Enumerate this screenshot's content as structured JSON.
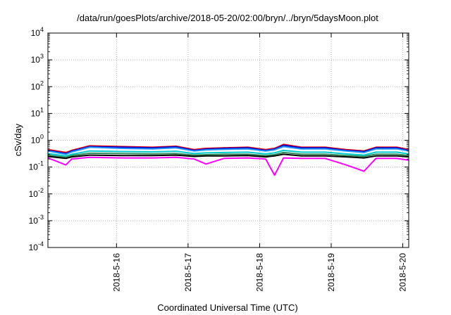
{
  "chart_data": {
    "type": "line",
    "title": "/data/run/goesPlots/archive/2018-05-20/02:00/bryn/../bryn/5daysMoon.plot",
    "xlabel": "Coordinated Universal Time (UTC)",
    "ylabel": "cSv/day",
    "yscale": "log",
    "ylim": [
      0.0001,
      10000
    ],
    "xlim": [
      "2018-05-15T01:00",
      "2018-05-20T02:00"
    ],
    "grid": true,
    "legend": "none",
    "x_ticks": [
      "2018-5-16",
      "2018-5-17",
      "2018-5-18",
      "2018-5-19",
      "2018-5-20"
    ],
    "y_ticks": [
      {
        "base": "10",
        "exp": "-4",
        "value": 0.0001
      },
      {
        "base": "10",
        "exp": "-3",
        "value": 0.001
      },
      {
        "base": "10",
        "exp": "-2",
        "value": 0.01
      },
      {
        "base": "10",
        "exp": "-1",
        "value": 0.1
      },
      {
        "base": "10",
        "exp": "0",
        "value": 1
      },
      {
        "base": "10",
        "exp": "1",
        "value": 10
      },
      {
        "base": "10",
        "exp": "2",
        "value": 100
      },
      {
        "base": "10",
        "exp": "3",
        "value": 1000
      },
      {
        "base": "10",
        "exp": "4",
        "value": 10000
      }
    ],
    "x": [
      "2018-05-15T01:00",
      "2018-05-15T07:00",
      "2018-05-15T09:00",
      "2018-05-15T15:00",
      "2018-05-16T02:00",
      "2018-05-16T12:00",
      "2018-05-16T20:00",
      "2018-05-17T02:00",
      "2018-05-17T06:00",
      "2018-05-17T12:00",
      "2018-05-17T20:00",
      "2018-05-18T02:00",
      "2018-05-18T05:00",
      "2018-05-18T08:00",
      "2018-05-18T14:00",
      "2018-05-18T22:00",
      "2018-05-19T05:00",
      "2018-05-19T11:00",
      "2018-05-19T15:00",
      "2018-05-19T22:00",
      "2018-05-20T02:00"
    ],
    "series": [
      {
        "color": "#ff0000",
        "values": [
          0.45,
          0.35,
          0.42,
          0.62,
          0.58,
          0.55,
          0.6,
          0.45,
          0.5,
          0.52,
          0.55,
          0.45,
          0.5,
          0.7,
          0.55,
          0.55,
          0.45,
          0.4,
          0.55,
          0.55,
          0.45
        ]
      },
      {
        "color": "#0000cc",
        "values": [
          0.42,
          0.32,
          0.4,
          0.58,
          0.55,
          0.52,
          0.57,
          0.42,
          0.47,
          0.5,
          0.52,
          0.42,
          0.47,
          0.65,
          0.52,
          0.52,
          0.42,
          0.38,
          0.52,
          0.52,
          0.42
        ]
      },
      {
        "color": "#1e90ff",
        "values": [
          0.4,
          0.3,
          0.37,
          0.55,
          0.5,
          0.48,
          0.52,
          0.4,
          0.44,
          0.46,
          0.48,
          0.4,
          0.44,
          0.58,
          0.48,
          0.48,
          0.4,
          0.35,
          0.48,
          0.48,
          0.4
        ]
      },
      {
        "color": "#00cccc",
        "values": [
          0.32,
          0.26,
          0.3,
          0.4,
          0.38,
          0.37,
          0.39,
          0.32,
          0.34,
          0.35,
          0.36,
          0.31,
          0.34,
          0.42,
          0.36,
          0.36,
          0.31,
          0.28,
          0.36,
          0.36,
          0.31
        ]
      },
      {
        "color": "#2e8b57",
        "values": [
          0.28,
          0.23,
          0.27,
          0.33,
          0.32,
          0.31,
          0.32,
          0.28,
          0.29,
          0.3,
          0.3,
          0.27,
          0.29,
          0.35,
          0.3,
          0.3,
          0.27,
          0.25,
          0.3,
          0.3,
          0.27
        ]
      },
      {
        "color": "#000000",
        "values": [
          0.25,
          0.21,
          0.24,
          0.28,
          0.27,
          0.27,
          0.28,
          0.25,
          0.26,
          0.26,
          0.27,
          0.24,
          0.26,
          0.3,
          0.26,
          0.26,
          0.24,
          0.22,
          0.26,
          0.26,
          0.24
        ]
      },
      {
        "color": "#ff00ff",
        "values": [
          0.22,
          0.12,
          0.2,
          0.23,
          0.22,
          0.22,
          0.23,
          0.2,
          0.13,
          0.21,
          0.22,
          0.2,
          0.05,
          0.22,
          0.21,
          0.21,
          0.12,
          0.07,
          0.21,
          0.21,
          0.18
        ]
      }
    ]
  }
}
